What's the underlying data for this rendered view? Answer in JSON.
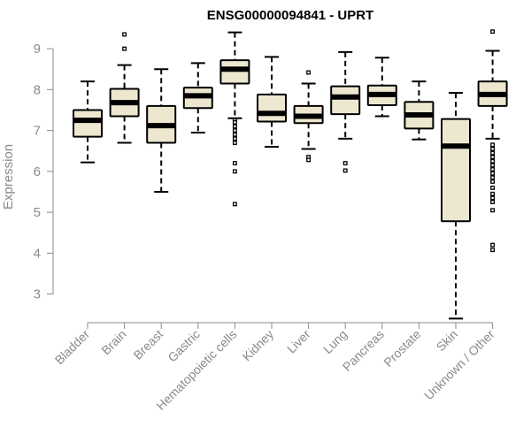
{
  "chart_data": {
    "type": "box",
    "title": "ENSG00000094841 - UPRT",
    "ylabel": "Expression",
    "ylim": [
      2.3,
      9.5
    ],
    "yticks": [
      3,
      4,
      5,
      6,
      7,
      8,
      9
    ],
    "grid": false,
    "colors": {
      "box_fill": "#ede7d0",
      "stroke": "#000000",
      "axis": "#8a8a8a"
    },
    "categories": [
      "Bladder",
      "Brain",
      "Breast",
      "Gastric",
      "Hematopoietic cells",
      "Kidney",
      "Liver",
      "Lung",
      "Pancreas",
      "Prostate",
      "Skin",
      "Unknown / Other"
    ],
    "boxes": [
      {
        "q1": 6.85,
        "median": 7.25,
        "q3": 7.5,
        "whisker_low": 6.22,
        "whisker_high": 8.2,
        "outliers": []
      },
      {
        "q1": 7.35,
        "median": 7.68,
        "q3": 8.02,
        "whisker_low": 6.7,
        "whisker_high": 8.6,
        "outliers": [
          9.0,
          9.35
        ]
      },
      {
        "q1": 6.7,
        "median": 7.12,
        "q3": 7.6,
        "whisker_low": 5.5,
        "whisker_high": 8.5,
        "outliers": []
      },
      {
        "q1": 7.55,
        "median": 7.85,
        "q3": 8.05,
        "whisker_low": 6.95,
        "whisker_high": 8.65,
        "outliers": []
      },
      {
        "q1": 8.15,
        "median": 8.5,
        "q3": 8.72,
        "whisker_low": 7.3,
        "whisker_high": 9.4,
        "outliers": [
          7.25,
          7.2,
          7.1,
          7.0,
          6.9,
          6.8,
          6.7,
          6.2,
          6.0,
          5.2
        ]
      },
      {
        "q1": 7.22,
        "median": 7.42,
        "q3": 7.88,
        "whisker_low": 6.6,
        "whisker_high": 8.8,
        "outliers": []
      },
      {
        "q1": 7.18,
        "median": 7.35,
        "q3": 7.6,
        "whisker_low": 6.55,
        "whisker_high": 8.15,
        "outliers": [
          6.35,
          6.28,
          8.42
        ]
      },
      {
        "q1": 7.4,
        "median": 7.82,
        "q3": 8.08,
        "whisker_low": 6.8,
        "whisker_high": 8.92,
        "outliers": [
          6.2,
          6.02
        ]
      },
      {
        "q1": 7.62,
        "median": 7.88,
        "q3": 8.1,
        "whisker_low": 7.35,
        "whisker_high": 8.78,
        "outliers": []
      },
      {
        "q1": 7.05,
        "median": 7.38,
        "q3": 7.7,
        "whisker_low": 6.78,
        "whisker_high": 8.2,
        "outliers": []
      },
      {
        "q1": 4.78,
        "median": 6.62,
        "q3": 7.28,
        "whisker_low": 2.4,
        "whisker_high": 7.92,
        "outliers": []
      },
      {
        "q1": 7.6,
        "median": 7.88,
        "q3": 8.2,
        "whisker_low": 6.8,
        "whisker_high": 8.95,
        "outliers": [
          9.42,
          6.65,
          6.55,
          6.45,
          6.35,
          6.25,
          6.15,
          6.05,
          5.95,
          5.85,
          5.75,
          5.6,
          5.45,
          5.35,
          5.25,
          5.05,
          4.2,
          4.08
        ]
      }
    ]
  }
}
